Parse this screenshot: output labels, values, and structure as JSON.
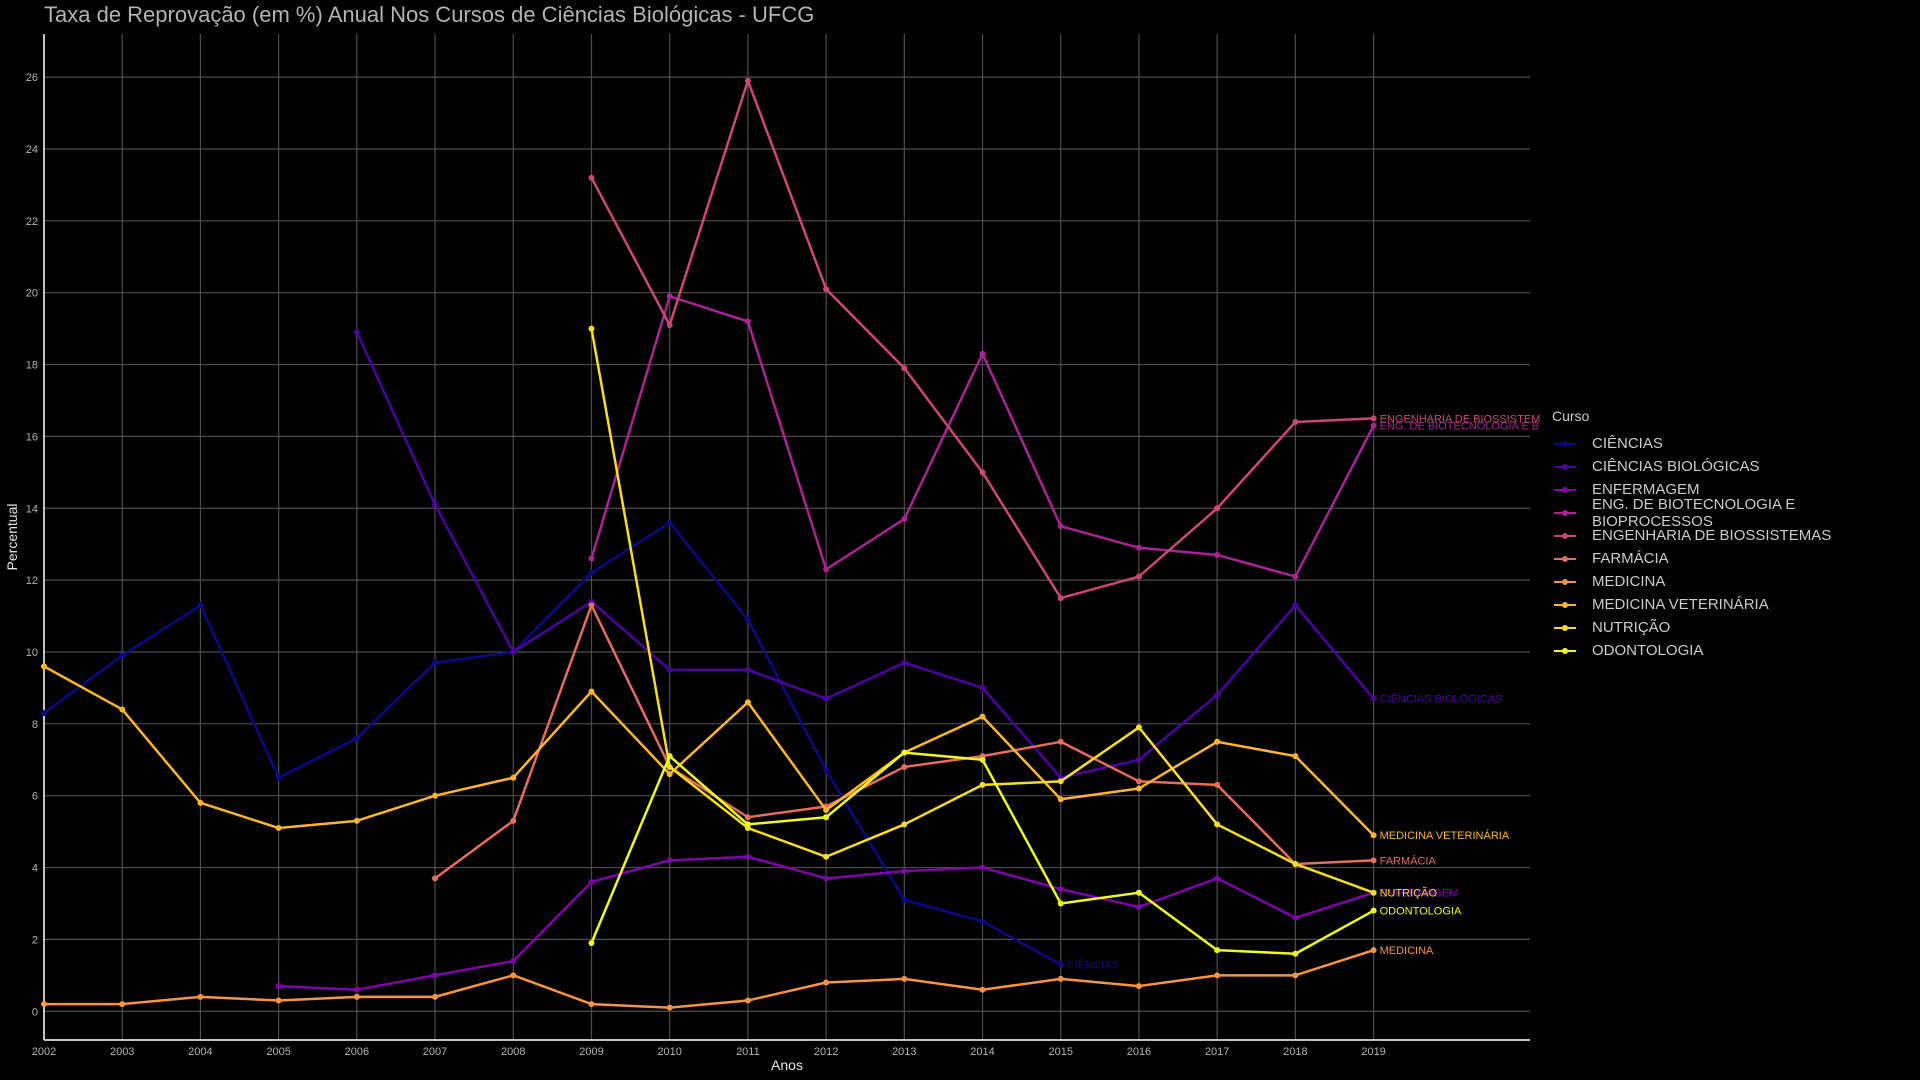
{
  "chart_data": {
    "type": "line",
    "title": "Taxa de Reprovação (em %) Anual Nos Cursos de Ciências Biológicas - UFCG",
    "xlabel": "Anos",
    "ylabel": "Percentual",
    "xlim": [
      2002,
      2021
    ],
    "ylim": [
      -0.8,
      27.2
    ],
    "x_ticks": [
      2002,
      2003,
      2004,
      2005,
      2006,
      2007,
      2008,
      2009,
      2010,
      2011,
      2012,
      2013,
      2014,
      2015,
      2016,
      2017,
      2018,
      2019
    ],
    "y_ticks": [
      0,
      2,
      4,
      6,
      8,
      10,
      12,
      14,
      16,
      18,
      20,
      22,
      24,
      26
    ],
    "grid": true,
    "legend_title": "Curso",
    "legend_position": "right",
    "series": [
      {
        "name": "CIÊNCIAS",
        "end_label": "CIÊNCIAS",
        "color": "#0d0887",
        "x": [
          2002,
          2003,
          2004,
          2005,
          2006,
          2007,
          2008,
          2009,
          2010,
          2011,
          2012,
          2013,
          2014,
          2015
        ],
        "y": [
          8.3,
          9.9,
          11.3,
          6.5,
          7.6,
          9.7,
          10.0,
          12.2,
          13.6,
          10.9,
          6.7,
          3.1,
          2.5,
          1.3
        ]
      },
      {
        "name": "CIÊNCIAS BIOLÓGICAS",
        "end_label": "CIÊNCIAS BIOLÓGICAS",
        "color": "#4c02a1",
        "x": [
          2006,
          2007,
          2008,
          2009,
          2010,
          2011,
          2012,
          2013,
          2014,
          2015,
          2016,
          2017,
          2018,
          2019
        ],
        "y": [
          18.9,
          14.1,
          10.0,
          11.4,
          9.5,
          9.5,
          8.7,
          9.7,
          9.0,
          6.5,
          7.0,
          8.8,
          11.3,
          8.7
        ]
      },
      {
        "name": "ENFERMAGEM",
        "end_label": "ENFERMAGEM",
        "color": "#7e03a8",
        "x": [
          2005,
          2006,
          2007,
          2008,
          2009,
          2010,
          2011,
          2012,
          2013,
          2014,
          2015,
          2016,
          2017,
          2018,
          2019
        ],
        "y": [
          0.7,
          0.6,
          1.0,
          1.4,
          3.6,
          4.2,
          4.3,
          3.7,
          3.9,
          4.0,
          3.4,
          2.9,
          3.7,
          2.6,
          3.3
        ]
      },
      {
        "name": "ENG. DE BIOTECNOLOGIA E BIOPROCESSOS",
        "end_label": "ENG. DE BIOTECNOLOGIA E B",
        "color": "#a92395",
        "x": [
          2009,
          2010,
          2011,
          2012,
          2013,
          2014,
          2015,
          2016,
          2017,
          2018,
          2019
        ],
        "y": [
          12.6,
          19.9,
          19.2,
          12.3,
          13.7,
          18.3,
          13.5,
          12.9,
          12.7,
          12.1,
          16.3
        ]
      },
      {
        "name": "ENGENHARIA DE BIOSSISTEMAS",
        "end_label": "ENGENHARIA DE BIOSSISTEM",
        "color": "#cc4778",
        "x": [
          2009,
          2010,
          2011,
          2012,
          2013,
          2014,
          2015,
          2016,
          2017,
          2018,
          2019
        ],
        "y": [
          23.2,
          19.1,
          25.9,
          20.1,
          17.9,
          15.0,
          11.5,
          12.1,
          14.0,
          16.4,
          16.5
        ]
      },
      {
        "name": "FARMÁCIA",
        "end_label": "FARMÁCIA",
        "color": "#e66c5c",
        "x": [
          2007,
          2008,
          2009,
          2010,
          2011,
          2012,
          2013,
          2014,
          2015,
          2016,
          2017,
          2018,
          2019
        ],
        "y": [
          3.7,
          5.3,
          11.3,
          6.8,
          5.4,
          5.7,
          6.8,
          7.1,
          7.5,
          6.4,
          6.3,
          4.1,
          4.2
        ]
      },
      {
        "name": "MEDICINA",
        "end_label": "MEDICINA",
        "color": "#f89441",
        "x": [
          2002,
          2003,
          2004,
          2005,
          2006,
          2007,
          2008,
          2009,
          2010,
          2011,
          2012,
          2013,
          2014,
          2015,
          2016,
          2017,
          2018,
          2019
        ],
        "y": [
          0.2,
          0.2,
          0.4,
          0.3,
          0.4,
          0.4,
          1.0,
          0.2,
          0.1,
          0.3,
          0.8,
          0.9,
          0.6,
          0.9,
          0.7,
          1.0,
          1.0,
          1.7
        ]
      },
      {
        "name": "MEDICINA VETERINÁRIA",
        "end_label": "MEDICINA VETERINÁRIA",
        "color": "#fdb42f",
        "x": [
          2002,
          2003,
          2004,
          2005,
          2006,
          2007,
          2008,
          2009,
          2010,
          2011,
          2012,
          2013,
          2014,
          2015,
          2016,
          2017,
          2018,
          2019
        ],
        "y": [
          9.6,
          8.4,
          5.8,
          5.1,
          5.3,
          6.0,
          6.5,
          8.9,
          6.6,
          8.6,
          5.6,
          7.2,
          8.2,
          5.9,
          6.2,
          7.5,
          7.1,
          4.9
        ]
      },
      {
        "name": "NUTRIÇÃO",
        "end_label": "NUTRIÇÃO",
        "color": "#f9dc24",
        "x": [
          2009,
          2010,
          2011,
          2012,
          2013,
          2014,
          2015,
          2016,
          2017,
          2018,
          2019
        ],
        "y": [
          19.0,
          6.8,
          5.1,
          4.3,
          5.2,
          6.3,
          6.4,
          7.9,
          5.2,
          4.1,
          3.3
        ]
      },
      {
        "name": "ODONTOLOGIA",
        "end_label": "ODONTOLOGIA",
        "color": "#f0f921",
        "x": [
          2009,
          2010,
          2011,
          2012,
          2013,
          2014,
          2015,
          2016,
          2017,
          2018,
          2019
        ],
        "y": [
          1.9,
          7.1,
          5.2,
          5.4,
          7.2,
          7.0,
          3.0,
          3.3,
          1.7,
          1.6,
          2.8
        ]
      }
    ]
  }
}
